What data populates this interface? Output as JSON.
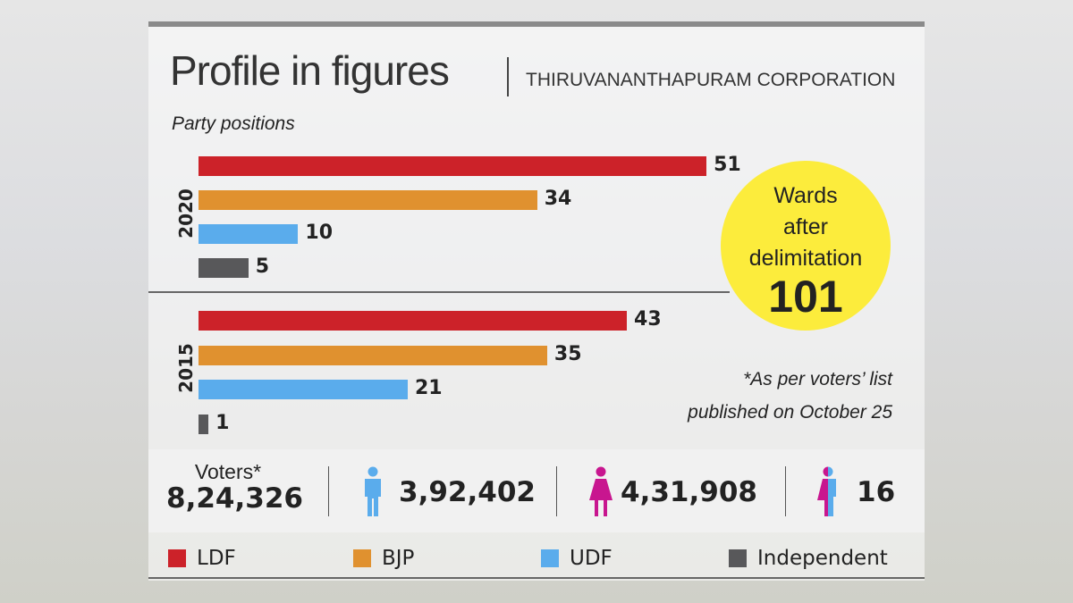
{
  "header": {
    "title": "Profile in figures",
    "subtitle": "THIRUVANANTHAPURAM CORPORATION"
  },
  "chart_data": {
    "type": "bar",
    "orientation": "horizontal",
    "title": "Party positions",
    "categories": [
      "LDF",
      "BJP",
      "UDF",
      "Independent"
    ],
    "groups": [
      {
        "name": "2020",
        "values": [
          51,
          34,
          10,
          5
        ]
      },
      {
        "name": "2015",
        "values": [
          43,
          35,
          21,
          1
        ]
      }
    ],
    "colors": [
      "#cc2229",
      "#e0912f",
      "#5aacec",
      "#58585a"
    ],
    "legend": "bottom"
  },
  "wards": {
    "line1": "Wards",
    "line2": "after",
    "line3": "delimitation",
    "value": "101"
  },
  "note": {
    "line1": "*As per voters’ list",
    "line2": "published on October 25"
  },
  "voters": {
    "label": "Voters*",
    "total": "8,24,326",
    "male": "3,92,402",
    "female": "4,31,908",
    "transgender": "16"
  },
  "icons": {
    "male": "male-person-icon",
    "female": "female-person-icon",
    "transgender": "transgender-person-icon"
  }
}
